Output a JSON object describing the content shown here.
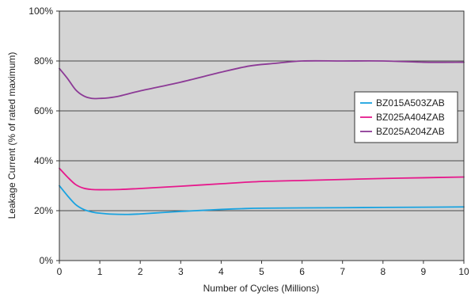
{
  "chart_data": {
    "type": "line",
    "xlabel": "Number of Cycles (Millions)",
    "ylabel": "Leakage Current (% of rated maximum)",
    "xlim": [
      0,
      10
    ],
    "ylim": [
      0,
      100
    ],
    "x_ticks": [
      0,
      1,
      2,
      3,
      4,
      5,
      6,
      7,
      8,
      9,
      10
    ],
    "x_tick_labels": [
      "0",
      "1",
      "2",
      "3",
      "4",
      "5",
      "6",
      "7",
      "8",
      "9",
      "10"
    ],
    "y_ticks": [
      0,
      20,
      40,
      60,
      80,
      100
    ],
    "y_tick_labels": [
      "0%",
      "20%",
      "40%",
      "60%",
      "80%",
      "100%"
    ],
    "grid": "horizontal",
    "legend_position": "right",
    "plot_background": "#d4d4d4",
    "series": [
      {
        "name": "BZ015A503ZAB",
        "color": "#1aa3e0",
        "x": [
          0,
          0.2,
          0.4,
          0.6,
          0.8,
          1.0,
          1.3,
          1.7,
          2.0,
          2.5,
          3.0,
          3.5,
          4.0,
          4.5,
          5.0,
          6.0,
          7.0,
          8.0,
          9.0,
          10.0
        ],
        "y": [
          30,
          26,
          22.5,
          20.5,
          19.5,
          19,
          18.6,
          18.5,
          18.7,
          19.2,
          19.7,
          20.1,
          20.5,
          20.8,
          21,
          21.1,
          21.2,
          21.3,
          21.4,
          21.5
        ]
      },
      {
        "name": "BZ025A404ZAB",
        "color": "#e6198c",
        "x": [
          0,
          0.2,
          0.4,
          0.6,
          0.8,
          1.0,
          1.5,
          2.0,
          3.0,
          4.0,
          5.0,
          6.0,
          7.0,
          8.0,
          9.0,
          10.0
        ],
        "y": [
          37,
          33.5,
          30.5,
          29,
          28.5,
          28.4,
          28.5,
          28.9,
          29.8,
          30.8,
          31.7,
          32.1,
          32.5,
          32.9,
          33.2,
          33.5
        ]
      },
      {
        "name": "BZ025A204ZAB",
        "color": "#8c3a96",
        "x": [
          0,
          0.2,
          0.4,
          0.6,
          0.8,
          1.0,
          1.2,
          1.5,
          2.0,
          3.0,
          4.0,
          4.7,
          5.3,
          6.0,
          7.0,
          8.0,
          9.0,
          10.0
        ],
        "y": [
          77,
          73,
          68.5,
          66,
          65,
          65,
          65.2,
          66,
          68,
          71.5,
          75.5,
          78,
          79,
          80,
          80,
          80,
          79.5,
          79.5
        ]
      }
    ]
  }
}
